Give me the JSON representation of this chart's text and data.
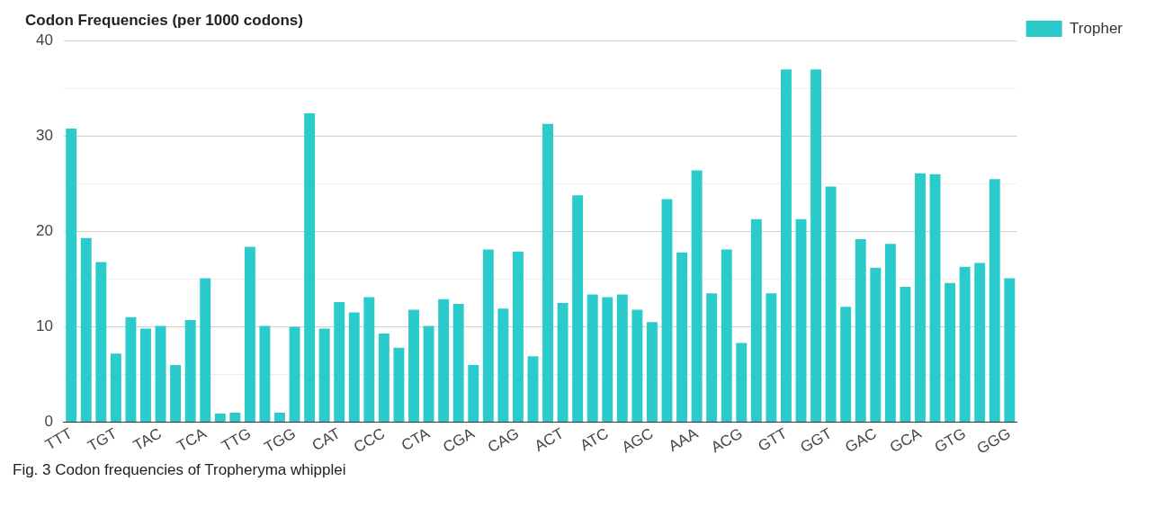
{
  "chart_data": {
    "type": "bar",
    "title": "Codon Frequencies (per 1000 codons)",
    "categories": [
      "TTT",
      null,
      null,
      "TGT",
      null,
      null,
      "TAC",
      null,
      null,
      "TCA",
      null,
      null,
      "TTG",
      null,
      null,
      "TGG",
      null,
      null,
      "CAT",
      null,
      null,
      "CCC",
      null,
      null,
      "CTA",
      null,
      null,
      "CGA",
      null,
      null,
      "CAG",
      null,
      null,
      "ACT",
      null,
      null,
      "ATC",
      null,
      null,
      "AGC",
      null,
      null,
      "AAA",
      null,
      null,
      "ACG",
      null,
      null,
      "GTT",
      null,
      null,
      "GGT",
      null,
      null,
      "GAC",
      null,
      null,
      "GCA",
      null,
      null,
      "GTG",
      null,
      null,
      "GGG"
    ],
    "series": [
      {
        "name": "Tropher",
        "color": "#2ccbcb",
        "values": [
          30.8,
          19.3,
          16.8,
          7.2,
          11.0,
          9.8,
          10.1,
          6.0,
          10.7,
          15.1,
          0.9,
          1.0,
          18.4,
          10.1,
          1.0,
          10.0,
          32.4,
          9.8,
          12.6,
          11.5,
          13.1,
          9.3,
          7.8,
          11.8,
          10.1,
          12.9,
          12.4,
          6.0,
          18.1,
          11.9,
          17.9,
          6.9,
          31.3,
          12.5,
          23.8,
          13.4,
          13.1,
          13.4,
          11.8,
          10.5,
          23.4,
          17.8,
          26.4,
          13.5,
          18.1,
          8.3,
          21.3,
          13.5,
          37.0,
          21.3,
          37.0,
          24.7,
          12.1,
          19.2,
          16.2,
          18.7,
          14.2,
          26.1,
          26.0,
          14.6,
          16.3,
          16.7,
          25.5,
          15.1
        ]
      }
    ],
    "ylim": [
      0,
      40
    ],
    "yticks": [
      0,
      {
        "value": 5,
        "label": null
      },
      10,
      {
        "value": 15,
        "label": null
      },
      20,
      {
        "value": 25,
        "label": null
      },
      30,
      {
        "value": 35,
        "label": null
      },
      40
    ],
    "grid": "y",
    "legend": "top right",
    "annotations": [
      "Fig. 3 Codon frequencies of Tropheryma whipplei"
    ]
  }
}
